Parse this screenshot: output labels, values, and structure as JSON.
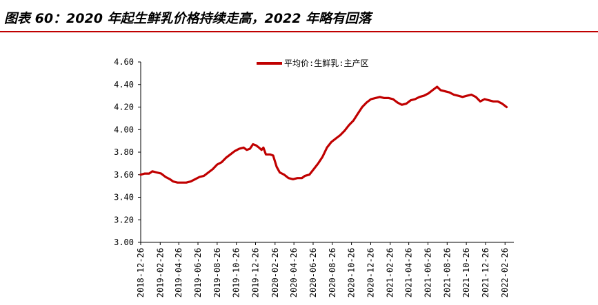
{
  "title": "图表 60：2020 年起生鲜乳价格持续走高，2022 年略有回落",
  "chart_data": {
    "type": "line",
    "legend_position": "top",
    "grid": false,
    "ylim": [
      3.0,
      4.6
    ],
    "y_ticks": [
      "3.00",
      "3.20",
      "3.40",
      "3.60",
      "3.80",
      "4.00",
      "4.20",
      "4.40",
      "4.60"
    ],
    "x_start": "2018-12-26",
    "x_end": "2022-03-26",
    "x_ticks": [
      "2018-12-26",
      "2019-02-26",
      "2019-04-26",
      "2019-06-26",
      "2019-08-26",
      "2019-10-26",
      "2019-12-26",
      "2020-02-26",
      "2020-04-26",
      "2020-06-26",
      "2020-08-26",
      "2020-10-26",
      "2020-12-26",
      "2021-02-26",
      "2021-04-26",
      "2021-06-26",
      "2021-08-26",
      "2021-10-26",
      "2021-12-26",
      "2022-02-26"
    ],
    "series": [
      {
        "name": "平均价:生鲜乳:主产区",
        "color": "#c00000",
        "points": [
          [
            "2018-12-26",
            3.6
          ],
          [
            "2019-01-08",
            3.61
          ],
          [
            "2019-01-22",
            3.61
          ],
          [
            "2019-02-01",
            3.63
          ],
          [
            "2019-02-15",
            3.62
          ],
          [
            "2019-03-01",
            3.61
          ],
          [
            "2019-03-15",
            3.58
          ],
          [
            "2019-03-29",
            3.56
          ],
          [
            "2019-04-08",
            3.54
          ],
          [
            "2019-04-22",
            3.53
          ],
          [
            "2019-05-06",
            3.53
          ],
          [
            "2019-05-20",
            3.53
          ],
          [
            "2019-06-03",
            3.54
          ],
          [
            "2019-06-17",
            3.56
          ],
          [
            "2019-07-01",
            3.58
          ],
          [
            "2019-07-15",
            3.59
          ],
          [
            "2019-07-29",
            3.62
          ],
          [
            "2019-08-12",
            3.65
          ],
          [
            "2019-08-26",
            3.69
          ],
          [
            "2019-09-09",
            3.71
          ],
          [
            "2019-09-23",
            3.75
          ],
          [
            "2019-10-07",
            3.78
          ],
          [
            "2019-10-21",
            3.81
          ],
          [
            "2019-11-04",
            3.83
          ],
          [
            "2019-11-18",
            3.84
          ],
          [
            "2019-11-28",
            3.82
          ],
          [
            "2019-12-08",
            3.83
          ],
          [
            "2019-12-18",
            3.87
          ],
          [
            "2019-12-28",
            3.86
          ],
          [
            "2020-01-06",
            3.84
          ],
          [
            "2020-01-14",
            3.82
          ],
          [
            "2020-01-20",
            3.84
          ],
          [
            "2020-01-28",
            3.78
          ],
          [
            "2020-02-10",
            3.78
          ],
          [
            "2020-02-20",
            3.77
          ],
          [
            "2020-03-02",
            3.67
          ],
          [
            "2020-03-12",
            3.62
          ],
          [
            "2020-03-26",
            3.6
          ],
          [
            "2020-04-09",
            3.57
          ],
          [
            "2020-04-23",
            3.56
          ],
          [
            "2020-05-07",
            3.57
          ],
          [
            "2020-05-21",
            3.57
          ],
          [
            "2020-05-31",
            3.59
          ],
          [
            "2020-06-14",
            3.6
          ],
          [
            "2020-06-28",
            3.65
          ],
          [
            "2020-07-12",
            3.7
          ],
          [
            "2020-07-26",
            3.76
          ],
          [
            "2020-08-09",
            3.84
          ],
          [
            "2020-08-23",
            3.89
          ],
          [
            "2020-09-06",
            3.92
          ],
          [
            "2020-09-20",
            3.95
          ],
          [
            "2020-10-04",
            3.99
          ],
          [
            "2020-10-18",
            4.04
          ],
          [
            "2020-11-01",
            4.08
          ],
          [
            "2020-11-15",
            4.14
          ],
          [
            "2020-11-29",
            4.2
          ],
          [
            "2020-12-13",
            4.24
          ],
          [
            "2020-12-27",
            4.27
          ],
          [
            "2021-01-10",
            4.28
          ],
          [
            "2021-01-24",
            4.29
          ],
          [
            "2021-02-07",
            4.28
          ],
          [
            "2021-02-21",
            4.28
          ],
          [
            "2021-03-07",
            4.27
          ],
          [
            "2021-03-21",
            4.24
          ],
          [
            "2021-04-04",
            4.22
          ],
          [
            "2021-04-18",
            4.23
          ],
          [
            "2021-05-02",
            4.26
          ],
          [
            "2021-05-16",
            4.27
          ],
          [
            "2021-05-30",
            4.29
          ],
          [
            "2021-06-13",
            4.3
          ],
          [
            "2021-06-27",
            4.32
          ],
          [
            "2021-07-11",
            4.35
          ],
          [
            "2021-07-25",
            4.38
          ],
          [
            "2021-08-05",
            4.35
          ],
          [
            "2021-08-19",
            4.34
          ],
          [
            "2021-09-02",
            4.33
          ],
          [
            "2021-09-16",
            4.31
          ],
          [
            "2021-09-30",
            4.3
          ],
          [
            "2021-10-14",
            4.29
          ],
          [
            "2021-10-28",
            4.3
          ],
          [
            "2021-11-11",
            4.31
          ],
          [
            "2021-11-25",
            4.29
          ],
          [
            "2021-12-09",
            4.25
          ],
          [
            "2021-12-23",
            4.27
          ],
          [
            "2022-01-06",
            4.26
          ],
          [
            "2022-01-20",
            4.25
          ],
          [
            "2022-02-03",
            4.25
          ],
          [
            "2022-02-17",
            4.23
          ],
          [
            "2022-03-03",
            4.2
          ]
        ]
      }
    ]
  }
}
